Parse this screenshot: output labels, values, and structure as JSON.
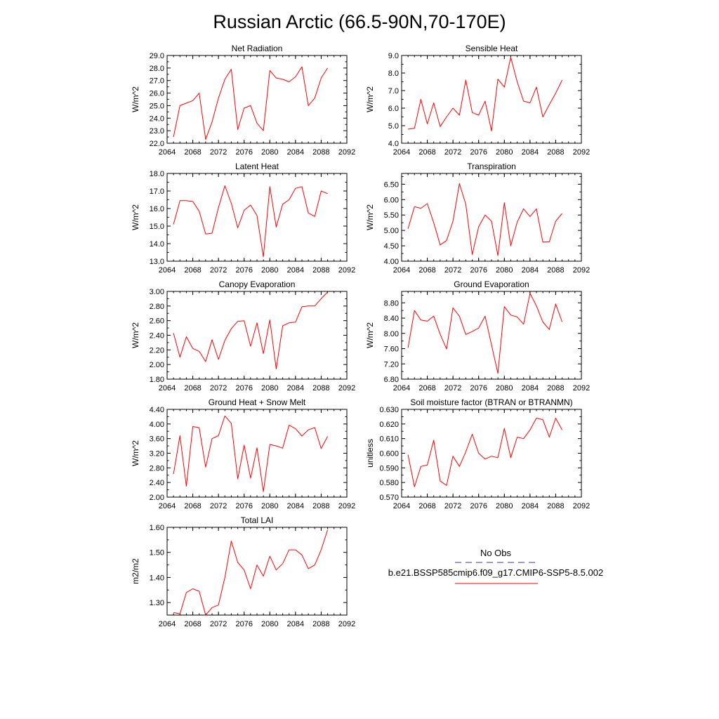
{
  "title": "Russian Arctic (66.5-90N,70-170E)",
  "colors": {
    "model": "#ff0000",
    "obs": "#3333aa",
    "axis": "#000000"
  },
  "legend": {
    "obs_label": "No Obs",
    "model_label": "b.e21.BSSP585cmip6.f09_g17.CMIP6-SSP5-8.5.002"
  },
  "chart_data": [
    {
      "type": "line",
      "title": "Net Radiation",
      "ylabel": "W/m^2",
      "xlim": [
        2064,
        2092
      ],
      "ylim": [
        22.0,
        29.0
      ],
      "xticks": [
        2064,
        2068,
        2072,
        2076,
        2080,
        2084,
        2088,
        2092
      ],
      "yticks": [
        "22.0",
        "23.0",
        "24.0",
        "25.0",
        "26.0",
        "27.0",
        "28.0",
        "29.0"
      ],
      "x": [
        2065,
        2066,
        2067,
        2068,
        2069,
        2070,
        2071,
        2072,
        2073,
        2074,
        2075,
        2076,
        2077,
        2078,
        2079,
        2080,
        2081,
        2082,
        2083,
        2084,
        2085,
        2086,
        2087,
        2088,
        2089
      ],
      "series": [
        {
          "values": [
            22.5,
            25.0,
            25.2,
            25.4,
            26.0,
            22.3,
            23.7,
            25.6,
            27.1,
            27.9,
            23.1,
            24.8,
            25.0,
            23.6,
            23.0,
            27.8,
            27.2,
            27.1,
            26.9,
            27.3,
            28.1,
            25.0,
            25.6,
            27.2,
            28.0
          ]
        }
      ]
    },
    {
      "type": "line",
      "title": "Sensible Heat",
      "ylabel": "W/m^2",
      "xlim": [
        2064,
        2092
      ],
      "ylim": [
        4.0,
        9.0
      ],
      "xticks": [
        2064,
        2068,
        2072,
        2076,
        2080,
        2084,
        2088,
        2092
      ],
      "yticks": [
        "4.0",
        "5.0",
        "6.0",
        "7.0",
        "8.0",
        "9.0"
      ],
      "x": [
        2065,
        2066,
        2067,
        2068,
        2069,
        2070,
        2071,
        2072,
        2073,
        2074,
        2075,
        2076,
        2077,
        2078,
        2079,
        2080,
        2081,
        2082,
        2083,
        2084,
        2085,
        2086,
        2087,
        2088,
        2089
      ],
      "series": [
        {
          "values": [
            4.8,
            4.85,
            6.5,
            5.1,
            6.3,
            4.95,
            5.5,
            6.0,
            5.6,
            7.6,
            5.75,
            5.6,
            6.4,
            4.7,
            7.65,
            7.2,
            8.9,
            7.5,
            6.4,
            6.3,
            7.2,
            5.5,
            6.2,
            6.85,
            7.6
          ]
        }
      ]
    },
    {
      "type": "line",
      "title": "Latent Heat",
      "ylabel": "W/m^2",
      "xlim": [
        2064,
        2092
      ],
      "ylim": [
        13.0,
        18.0
      ],
      "xticks": [
        2064,
        2068,
        2072,
        2076,
        2080,
        2084,
        2088,
        2092
      ],
      "yticks": [
        "13.0",
        "14.0",
        "15.0",
        "16.0",
        "17.0",
        "18.0"
      ],
      "x": [
        2065,
        2066,
        2067,
        2068,
        2069,
        2070,
        2071,
        2072,
        2073,
        2074,
        2075,
        2076,
        2077,
        2078,
        2079,
        2080,
        2081,
        2082,
        2083,
        2084,
        2085,
        2086,
        2087,
        2088,
        2089
      ],
      "series": [
        {
          "values": [
            15.1,
            16.45,
            16.45,
            16.4,
            15.85,
            14.55,
            14.6,
            16.05,
            17.3,
            16.3,
            14.9,
            15.9,
            16.2,
            15.6,
            13.25,
            17.25,
            14.95,
            16.25,
            16.5,
            17.15,
            17.25,
            15.75,
            15.55,
            17.0,
            16.85
          ]
        }
      ]
    },
    {
      "type": "line",
      "title": "Transpiration",
      "ylabel": "W/m^2",
      "xlim": [
        2064,
        2092
      ],
      "ylim": [
        4.0,
        6.85
      ],
      "xticks": [
        2064,
        2068,
        2072,
        2076,
        2080,
        2084,
        2088,
        2092
      ],
      "yticks": [
        "4.00",
        "4.50",
        "5.00",
        "5.50",
        "6.00",
        "6.50"
      ],
      "x": [
        2065,
        2066,
        2067,
        2068,
        2069,
        2070,
        2071,
        2072,
        2073,
        2074,
        2075,
        2076,
        2077,
        2078,
        2079,
        2080,
        2081,
        2082,
        2083,
        2084,
        2085,
        2086,
        2087,
        2088,
        2089
      ],
      "series": [
        {
          "values": [
            5.05,
            5.77,
            5.72,
            5.87,
            5.25,
            4.53,
            4.67,
            5.3,
            6.52,
            5.85,
            4.22,
            5.12,
            5.5,
            5.3,
            4.18,
            5.9,
            4.5,
            5.27,
            5.7,
            5.45,
            5.7,
            4.62,
            4.63,
            5.3,
            5.55
          ]
        }
      ]
    },
    {
      "type": "line",
      "title": "Canopy Evaporation",
      "ylabel": "W/m^2",
      "xlim": [
        2064,
        2092
      ],
      "ylim": [
        1.8,
        3.0
      ],
      "xticks": [
        2064,
        2068,
        2072,
        2076,
        2080,
        2084,
        2088,
        2092
      ],
      "yticks": [
        "1.80",
        "2.00",
        "2.20",
        "2.40",
        "2.60",
        "2.80",
        "3.00"
      ],
      "x": [
        2065,
        2066,
        2067,
        2068,
        2069,
        2070,
        2071,
        2072,
        2073,
        2074,
        2075,
        2076,
        2077,
        2078,
        2079,
        2080,
        2081,
        2082,
        2083,
        2084,
        2085,
        2086,
        2087,
        2088,
        2089
      ],
      "series": [
        {
          "values": [
            2.43,
            2.1,
            2.38,
            2.22,
            2.18,
            2.04,
            2.34,
            2.07,
            2.33,
            2.49,
            2.59,
            2.6,
            2.25,
            2.57,
            2.15,
            2.61,
            1.94,
            2.53,
            2.57,
            2.58,
            2.79,
            2.8,
            2.8,
            2.9,
            2.99
          ]
        }
      ]
    },
    {
      "type": "line",
      "title": "Ground Evaporation",
      "ylabel": "W/m^2",
      "xlim": [
        2064,
        2092
      ],
      "ylim": [
        6.8,
        9.1
      ],
      "xticks": [
        2064,
        2068,
        2072,
        2076,
        2080,
        2084,
        2088,
        2092
      ],
      "yticks": [
        "6.80",
        "7.20",
        "7.60",
        "8.00",
        "8.40",
        "8.80"
      ],
      "x": [
        2065,
        2066,
        2067,
        2068,
        2069,
        2070,
        2071,
        2072,
        2073,
        2074,
        2075,
        2076,
        2077,
        2078,
        2079,
        2080,
        2081,
        2082,
        2083,
        2084,
        2085,
        2086,
        2087,
        2088,
        2089
      ],
      "series": [
        {
          "values": [
            7.62,
            8.6,
            8.35,
            8.32,
            8.45,
            7.98,
            7.59,
            8.67,
            8.45,
            7.97,
            8.05,
            8.14,
            8.45,
            7.7,
            6.95,
            8.7,
            8.48,
            8.43,
            8.24,
            9.05,
            8.72,
            8.3,
            8.1,
            8.77,
            8.3
          ]
        }
      ]
    },
    {
      "type": "line",
      "title": "Ground Heat + Snow Melt",
      "ylabel": "W/m^2",
      "xlim": [
        2064,
        2092
      ],
      "ylim": [
        2.0,
        4.4
      ],
      "xticks": [
        2064,
        2068,
        2072,
        2076,
        2080,
        2084,
        2088,
        2092
      ],
      "yticks": [
        "2.00",
        "2.40",
        "2.80",
        "3.20",
        "3.60",
        "4.00",
        "4.40"
      ],
      "x": [
        2065,
        2066,
        2067,
        2068,
        2069,
        2070,
        2071,
        2072,
        2073,
        2074,
        2075,
        2076,
        2077,
        2078,
        2079,
        2080,
        2081,
        2082,
        2083,
        2084,
        2085,
        2086,
        2087,
        2088,
        2089
      ],
      "series": [
        {
          "values": [
            2.63,
            3.68,
            2.3,
            3.93,
            3.9,
            2.82,
            3.6,
            3.68,
            4.22,
            4.02,
            2.5,
            3.42,
            2.52,
            3.35,
            2.15,
            3.44,
            3.4,
            3.34,
            3.97,
            3.87,
            3.67,
            3.84,
            3.9,
            3.33,
            3.66
          ]
        }
      ]
    },
    {
      "type": "line",
      "title": "Soil moisture factor (BTRAN or BTRANMN)",
      "ylabel": "unitless",
      "xlim": [
        2064,
        2092
      ],
      "ylim": [
        0.57,
        0.63
      ],
      "xticks": [
        2064,
        2068,
        2072,
        2076,
        2080,
        2084,
        2088,
        2092
      ],
      "yticks": [
        "0.570",
        "0.580",
        "0.590",
        "0.600",
        "0.610",
        "0.620",
        "0.630"
      ],
      "x": [
        2065,
        2066,
        2067,
        2068,
        2069,
        2070,
        2071,
        2072,
        2073,
        2074,
        2075,
        2076,
        2077,
        2078,
        2079,
        2080,
        2081,
        2082,
        2083,
        2084,
        2085,
        2086,
        2087,
        2088,
        2089
      ],
      "series": [
        {
          "values": [
            0.599,
            0.577,
            0.591,
            0.592,
            0.609,
            0.581,
            0.578,
            0.598,
            0.591,
            0.601,
            0.613,
            0.6,
            0.596,
            0.598,
            0.597,
            0.617,
            0.597,
            0.611,
            0.61,
            0.616,
            0.624,
            0.623,
            0.611,
            0.624,
            0.616
          ]
        }
      ]
    },
    {
      "type": "line",
      "title": "Total LAI",
      "ylabel": "m2/m2",
      "xlim": [
        2064,
        2092
      ],
      "ylim": [
        1.25,
        1.6
      ],
      "xticks": [
        2064,
        2068,
        2072,
        2076,
        2080,
        2084,
        2088,
        2092
      ],
      "yticks": [
        "1.30",
        "1.40",
        "1.50",
        "1.60"
      ],
      "x": [
        2065,
        2066,
        2067,
        2068,
        2069,
        2070,
        2071,
        2072,
        2073,
        2074,
        2075,
        2076,
        2077,
        2078,
        2079,
        2080,
        2081,
        2082,
        2083,
        2084,
        2085,
        2086,
        2087,
        2088,
        2089
      ],
      "series": [
        {
          "values": [
            1.26,
            1.255,
            1.34,
            1.355,
            1.345,
            1.25,
            1.28,
            1.29,
            1.4,
            1.545,
            1.46,
            1.43,
            1.355,
            1.45,
            1.405,
            1.485,
            1.43,
            1.455,
            1.51,
            1.51,
            1.49,
            1.435,
            1.45,
            1.51,
            1.59
          ]
        }
      ]
    }
  ]
}
